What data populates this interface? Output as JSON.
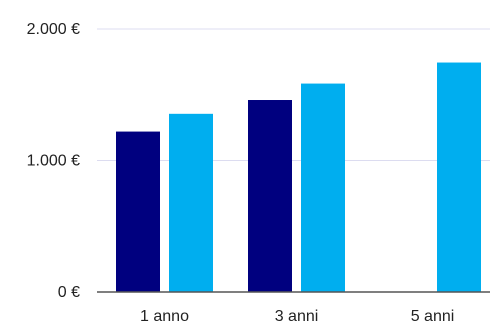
{
  "chart_data": {
    "type": "bar",
    "categories": [
      "1 anno",
      "3 anni",
      "5 anni"
    ],
    "series": [
      {
        "color": "#00007f",
        "values": [
          1220,
          1460,
          null
        ]
      },
      {
        "color": "#00aeef",
        "values": [
          1355,
          1585,
          1745
        ]
      }
    ],
    "y_ticks": [
      {
        "value": 0,
        "label": "0 €"
      },
      {
        "value": 1000,
        "label": "1.000 €"
      },
      {
        "value": 2000,
        "label": "2.000 €"
      }
    ],
    "ylim": [
      0,
      2000
    ],
    "grid": true,
    "legend": "none",
    "gridline_color": "#dcdcf0",
    "axis_color": "#555555"
  }
}
